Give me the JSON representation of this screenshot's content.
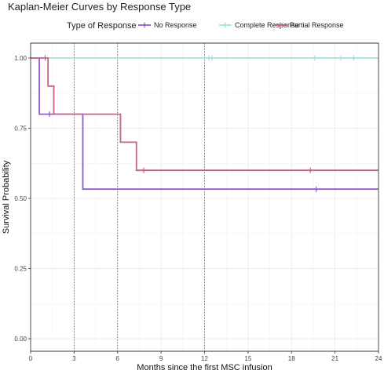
{
  "chart_data": {
    "type": "line",
    "title": "Kaplan-Meier Curves by Response Type",
    "xlabel": "Months since the first MSC infusion",
    "ylabel": "Survival Probability",
    "xlim": [
      0,
      24
    ],
    "ylim": [
      0,
      1
    ],
    "x_ticks": [
      "0",
      "3",
      "6",
      "9",
      "12",
      "15",
      "18",
      "21",
      "24"
    ],
    "y_ticks": [
      "0.00",
      "0.25",
      "0.50",
      "0.75",
      "1.00"
    ],
    "x_tick_values": [
      0,
      3,
      6,
      9,
      12,
      15,
      18,
      21,
      24
    ],
    "y_tick_values": [
      0,
      0.25,
      0.5,
      0.75,
      1.0
    ],
    "grid": true,
    "vlines": [
      3,
      6,
      12
    ],
    "legend_title": "Type of Response",
    "legend_position": "top",
    "series": [
      {
        "name": "No Response",
        "color": "#8e5bd0",
        "steps": [
          [
            0,
            1.0
          ],
          [
            0.6,
            0.8
          ],
          [
            3.6,
            0.533
          ],
          [
            24,
            0.533
          ]
        ],
        "censor": [
          [
            1.3,
            0.8
          ],
          [
            19.7,
            0.533
          ]
        ]
      },
      {
        "name": "Complete Response",
        "color": "#a8dde1",
        "steps": [
          [
            0,
            1.0
          ],
          [
            24,
            1.0
          ]
        ],
        "censor": [
          [
            12.3,
            1.0
          ],
          [
            12.5,
            1.0
          ],
          [
            19.6,
            1.0
          ],
          [
            21.4,
            1.0
          ],
          [
            22.3,
            1.0
          ]
        ]
      },
      {
        "name": "Partial Response",
        "color": "#cc6085",
        "steps": [
          [
            0,
            1.0
          ],
          [
            1.2,
            0.9
          ],
          [
            1.6,
            0.8
          ],
          [
            6.2,
            0.7
          ],
          [
            7.3,
            0.6
          ],
          [
            24,
            0.6
          ]
        ],
        "censor": [
          [
            1.0,
            1.0
          ],
          [
            7.8,
            0.6
          ],
          [
            19.3,
            0.6
          ]
        ]
      }
    ]
  }
}
